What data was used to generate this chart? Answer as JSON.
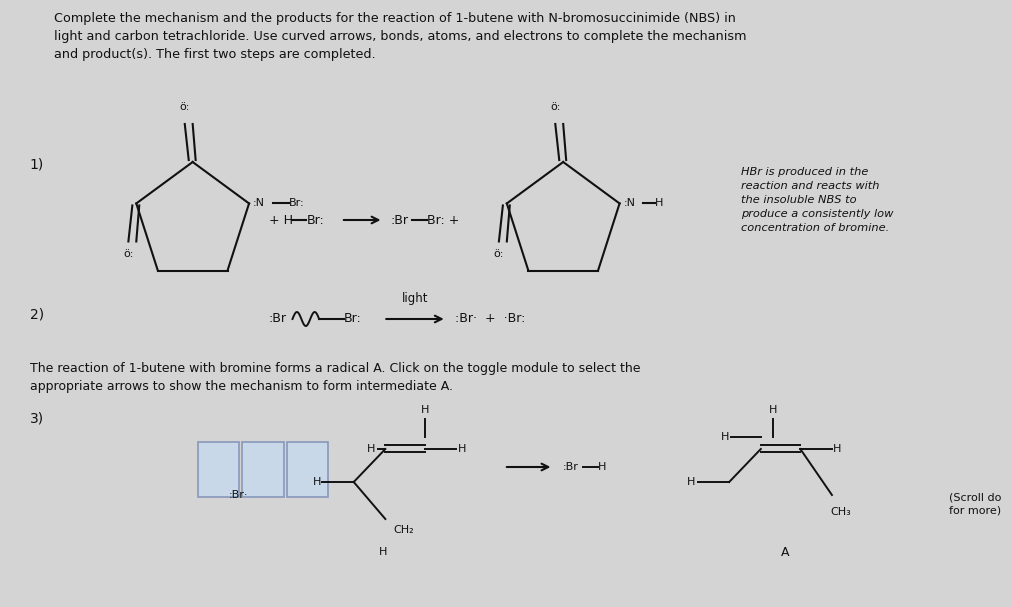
{
  "bg_color": "#d4d4d4",
  "title_text": "Complete the mechanism and the products for the reaction of 1-butene with N-bromosuccinimide (NBS) in\nlight and carbon tetrachloride. Use curved arrows, bonds, atoms, and electrons to complete the mechanism\nand product(s). The first two steps are completed.",
  "title_fontsize": 9.2,
  "step1_label": "1)",
  "step2_label": "2)",
  "step3_label": "3)",
  "body_text": "The reaction of 1-butene with bromine forms a radical A. Click on the toggle module to select the\nappropriate arrows to show the mechanism to form intermediate A.",
  "hbr_note": "HBr is produced in the\nreaction and reacts with\nthe insoluble NBS to\nproduce a consistently low\nconcentration of bromine.",
  "scroll_note": "(Scroll do\nfor more)",
  "font_color": "#111111"
}
